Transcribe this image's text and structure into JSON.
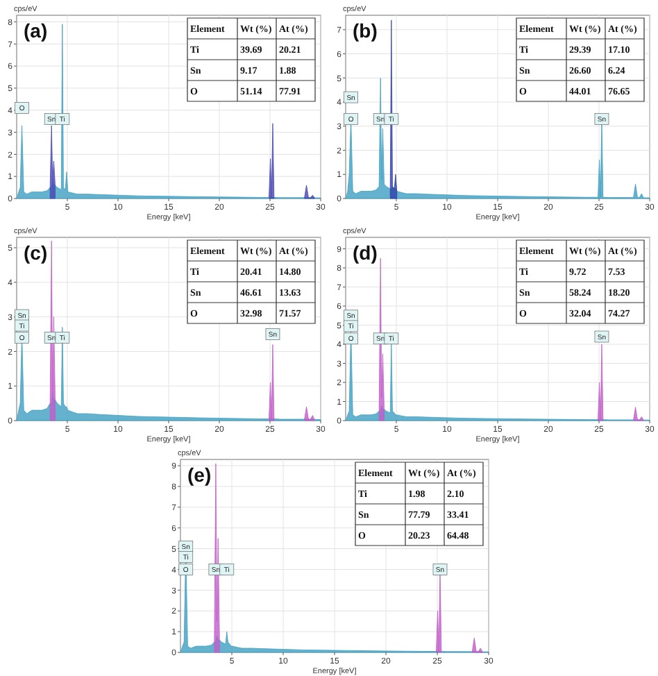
{
  "chart_data": [
    {
      "type": "area",
      "title": "(a)",
      "xlabel": "Energy [keV]",
      "ylabel": "cps/eV",
      "xlim": [
        0,
        30
      ],
      "xticks": [
        5,
        10,
        15,
        20,
        25,
        30
      ],
      "ylim": [
        0,
        8.3
      ],
      "yticks": [
        0,
        1,
        2,
        3,
        4,
        5,
        6,
        7,
        8
      ],
      "grid": true,
      "series": [
        {
          "color": "#3d9fc1",
          "x": [
            0,
            0.2,
            0.35,
            0.52,
            0.7,
            1,
            1.5,
            2,
            2.5,
            3,
            3.3,
            3.44,
            3.55,
            3.66,
            3.8,
            4,
            4.4,
            4.51,
            4.62,
            4.8,
            4.93,
            5.05,
            5.5,
            6,
            7,
            8,
            10,
            12,
            15,
            18,
            20,
            22,
            24,
            24.9,
            25.04,
            25.15,
            25.27,
            25.4,
            26,
            28,
            28.4,
            28.6,
            28.8,
            29,
            29.2,
            29.4,
            30
          ],
          "values": [
            0,
            0.3,
            0.5,
            3.3,
            0.3,
            0.2,
            0.3,
            0.3,
            0.3,
            0.35,
            0.5,
            0.5,
            0.8,
            0.6,
            0.6,
            0.5,
            0.4,
            7.9,
            0.5,
            0.4,
            1.2,
            0.3,
            0.25,
            0.2,
            0.2,
            0.18,
            0.15,
            0.12,
            0.1,
            0.08,
            0.07,
            0.06,
            0.05,
            0.05,
            0.05,
            0.05,
            0.05,
            0.05,
            0.04,
            0.04,
            0.04,
            0.04,
            0.04,
            0.04,
            0.04,
            0.03,
            0.03
          ]
        },
        {
          "color": "#4646b4",
          "x": [
            3.3,
            3.44,
            3.55,
            3.66,
            3.8,
            10,
            24.9,
            25.04,
            25.15,
            25.27,
            25.4,
            26,
            28.4,
            28.6,
            28.8,
            29,
            29.2,
            29.4
          ],
          "values": [
            0.5,
            3.3,
            0.8,
            1.7,
            0.6,
            null,
            0.05,
            1.8,
            0.05,
            3.4,
            0.05,
            null,
            0.04,
            0.6,
            0.04,
            0.04,
            0.15,
            0.03
          ]
        }
      ],
      "annotations": [
        "Element",
        "Wt (%)",
        "At (%)",
        "Ti",
        "39.69",
        "20.21",
        "Sn",
        "9.17",
        "1.88",
        "O",
        "51.14",
        "77.91",
        {
          "text": "O",
          "x": 0.52,
          "y": 4.1
        },
        {
          "text": "Sn",
          "x": 3.44,
          "y": 3.6
        },
        {
          "text": "Ti",
          "x": 4.51,
          "y": 3.6
        }
      ]
    },
    {
      "type": "area",
      "title": "(b)",
      "xlabel": "Energy [keV]",
      "ylabel": "cps/eV",
      "xlim": [
        0,
        30
      ],
      "xticks": [
        5,
        10,
        15,
        20,
        25,
        30
      ],
      "ylim": [
        0,
        7.6
      ],
      "yticks": [
        0,
        1,
        2,
        3,
        4,
        5,
        6,
        7
      ],
      "grid": true,
      "series": [
        {
          "color": "#3d9fc1",
          "x": [
            0,
            0.2,
            0.35,
            0.52,
            0.7,
            1,
            1.5,
            2,
            2.5,
            3,
            3.3,
            3.44,
            3.55,
            3.66,
            3.8,
            4,
            4.4,
            4.51,
            4.62,
            4.8,
            4.93,
            5.05,
            5.5,
            6,
            7,
            8,
            10,
            12,
            15,
            18,
            20,
            22,
            24,
            24.9,
            25.04,
            25.15,
            25.27,
            25.4,
            26,
            28,
            28.4,
            28.6,
            28.8,
            29,
            29.2,
            29.4,
            30
          ],
          "values": [
            0,
            0.3,
            1.0,
            3.3,
            0.3,
            0.2,
            0.3,
            0.3,
            0.3,
            0.35,
            0.5,
            5.0,
            0.8,
            2.9,
            0.6,
            0.5,
            0.4,
            0.4,
            0.5,
            0.4,
            0.4,
            0.3,
            0.25,
            0.2,
            0.2,
            0.18,
            0.15,
            0.12,
            0.1,
            0.08,
            0.07,
            0.06,
            0.05,
            0.05,
            1.6,
            0.05,
            3.3,
            0.05,
            0.04,
            0.04,
            0.04,
            0.6,
            0.04,
            0.04,
            0.2,
            0.03,
            0.03
          ]
        },
        {
          "color": "#2f3fa8",
          "x": [
            4.4,
            4.51,
            4.62,
            4.8,
            4.93,
            5.05
          ],
          "values": [
            0.4,
            7.4,
            0.5,
            0.4,
            1.0,
            0.3
          ]
        }
      ],
      "annotations": [
        "Element",
        "Wt (%)",
        "At (%)",
        "Ti",
        "29.39",
        "17.10",
        "Sn",
        "26.60",
        "6.24",
        "O",
        "44.01",
        "76.65",
        {
          "text": "Sn",
          "x": 0.52,
          "y": 4.2
        },
        {
          "text": "O",
          "x": 0.52,
          "y": 3.3
        },
        {
          "text": "Sn",
          "x": 3.44,
          "y": 3.3
        },
        {
          "text": "Ti",
          "x": 4.51,
          "y": 3.3
        },
        {
          "text": "Sn",
          "x": 25.27,
          "y": 3.3
        }
      ]
    },
    {
      "type": "area",
      "title": "(c)",
      "xlabel": "Energy [keV]",
      "ylabel": "cps/eV",
      "xlim": [
        0,
        30
      ],
      "xticks": [
        5,
        10,
        15,
        20,
        25,
        30
      ],
      "ylim": [
        0,
        5.3
      ],
      "yticks": [
        0,
        1,
        2,
        3,
        4,
        5
      ],
      "grid": true,
      "series": [
        {
          "color": "#3d9fc1",
          "x": [
            0,
            0.2,
            0.35,
            0.52,
            0.7,
            1,
            1.5,
            2,
            2.5,
            3,
            3.3,
            3.44,
            3.55,
            3.66,
            3.8,
            4,
            4.4,
            4.51,
            4.62,
            4.8,
            4.93,
            5.05,
            5.5,
            6,
            7,
            8,
            10,
            12,
            15,
            18,
            20,
            22,
            24,
            24.9,
            25.04,
            25.15,
            25.27,
            25.4,
            26,
            28,
            28.4,
            28.6,
            28.8,
            29,
            29.2,
            29.4,
            30
          ],
          "values": [
            0,
            0.3,
            0.5,
            2.5,
            0.3,
            0.2,
            0.3,
            0.3,
            0.3,
            0.35,
            0.5,
            0.5,
            0.8,
            0.6,
            0.6,
            0.5,
            0.4,
            2.7,
            0.5,
            0.4,
            0.4,
            0.3,
            0.25,
            0.2,
            0.2,
            0.18,
            0.15,
            0.12,
            0.1,
            0.08,
            0.07,
            0.06,
            0.05,
            0.05,
            0.05,
            0.05,
            0.05,
            0.05,
            0.04,
            0.04,
            0.04,
            0.04,
            0.04,
            0.04,
            0.04,
            0.03,
            0.03
          ]
        },
        {
          "color": "#c05cc8",
          "x": [
            3.3,
            3.44,
            3.55,
            3.66,
            3.8,
            10,
            24.9,
            25.04,
            25.15,
            25.27,
            25.4,
            26,
            28.4,
            28.6,
            28.8,
            29,
            29.2,
            29.4
          ],
          "values": [
            0.5,
            5.2,
            0.8,
            3.0,
            0.6,
            null,
            0.05,
            1.1,
            0.05,
            2.2,
            0.05,
            null,
            0.04,
            0.4,
            0.04,
            0.04,
            0.15,
            0.03
          ]
        }
      ],
      "annotations": [
        "Element",
        "Wt (%)",
        "At (%)",
        "Ti",
        "20.41",
        "14.80",
        "Sn",
        "46.61",
        "13.63",
        "O",
        "32.98",
        "71.57",
        {
          "text": "Sn",
          "x": 0.52,
          "y": 3.05
        },
        {
          "text": "Ti",
          "x": 0.52,
          "y": 2.75
        },
        {
          "text": "O",
          "x": 0.52,
          "y": 2.4
        },
        {
          "text": "Sn",
          "x": 3.44,
          "y": 2.4
        },
        {
          "text": "Ti",
          "x": 4.51,
          "y": 2.4
        },
        {
          "text": "Sn",
          "x": 25.27,
          "y": 2.5
        }
      ]
    },
    {
      "type": "area",
      "title": "(d)",
      "xlabel": "Energy [keV]",
      "ylabel": "cps/eV",
      "xlim": [
        0,
        30
      ],
      "xticks": [
        5,
        10,
        15,
        20,
        25,
        30
      ],
      "ylim": [
        0,
        9.6
      ],
      "yticks": [
        0,
        1,
        2,
        3,
        4,
        5,
        6,
        7,
        8,
        9
      ],
      "grid": true,
      "series": [
        {
          "color": "#3d9fc1",
          "x": [
            0,
            0.2,
            0.35,
            0.52,
            0.7,
            1,
            1.5,
            2,
            2.5,
            3,
            3.3,
            3.44,
            3.55,
            3.66,
            3.8,
            4,
            4.4,
            4.51,
            4.62,
            4.8,
            4.93,
            5.05,
            5.5,
            6,
            7,
            8,
            10,
            12,
            15,
            18,
            20,
            22,
            24,
            24.9,
            25.04,
            25.15,
            25.27,
            25.4,
            26,
            28,
            28.4,
            28.6,
            28.8,
            29,
            29.2,
            29.4,
            30
          ],
          "values": [
            0,
            0.3,
            0.5,
            4.8,
            0.3,
            0.2,
            0.3,
            0.3,
            0.3,
            0.35,
            0.5,
            0.5,
            0.8,
            0.6,
            0.6,
            0.5,
            0.4,
            4.0,
            0.5,
            0.4,
            0.3,
            0.3,
            0.25,
            0.2,
            0.2,
            0.18,
            0.15,
            0.12,
            0.1,
            0.08,
            0.07,
            0.06,
            0.05,
            0.05,
            0.05,
            0.05,
            0.05,
            0.05,
            0.04,
            0.04,
            0.04,
            0.04,
            0.04,
            0.04,
            0.04,
            0.03,
            0.03
          ]
        },
        {
          "color": "#c05cc8",
          "x": [
            3.3,
            3.44,
            3.55,
            3.66,
            3.8,
            10,
            24.9,
            25.04,
            25.15,
            25.27,
            25.4,
            26,
            28.4,
            28.6,
            28.8,
            29,
            29.2,
            29.4
          ],
          "values": [
            0.5,
            8.5,
            1.2,
            3.5,
            0.6,
            null,
            0.05,
            2.0,
            0.05,
            4.0,
            0.05,
            null,
            0.04,
            0.7,
            0.04,
            0.04,
            0.2,
            0.03
          ]
        }
      ],
      "annotations": [
        "Element",
        "Wt (%)",
        "At (%)",
        "Ti",
        "9.72",
        "7.53",
        "Sn",
        "58.24",
        "18.20",
        "O",
        "32.04",
        "74.27",
        {
          "text": "Sn",
          "x": 0.52,
          "y": 5.5
        },
        {
          "text": "Ti",
          "x": 0.52,
          "y": 4.95
        },
        {
          "text": "O",
          "x": 0.52,
          "y": 4.3
        },
        {
          "text": "Sn",
          "x": 3.44,
          "y": 4.3
        },
        {
          "text": "Ti",
          "x": 4.51,
          "y": 4.3
        },
        {
          "text": "Sn",
          "x": 25.27,
          "y": 4.4
        }
      ]
    },
    {
      "type": "area",
      "title": "(e)",
      "xlabel": "Energy [keV]",
      "ylabel": "cps/eV",
      "xlim": [
        0,
        30
      ],
      "xticks": [
        5,
        10,
        15,
        20,
        25,
        30
      ],
      "ylim": [
        0,
        9.3
      ],
      "yticks": [
        0,
        1,
        2,
        3,
        4,
        5,
        6,
        7,
        8,
        9
      ],
      "grid": true,
      "series": [
        {
          "color": "#3d9fc1",
          "x": [
            0,
            0.2,
            0.35,
            0.52,
            0.7,
            1,
            1.5,
            2,
            2.5,
            3,
            3.3,
            3.44,
            3.55,
            3.66,
            3.8,
            4,
            4.4,
            4.51,
            4.62,
            4.8,
            4.93,
            5.05,
            5.5,
            6,
            7,
            8,
            10,
            12,
            15,
            18,
            20,
            22,
            24,
            24.9,
            25.04,
            25.15,
            25.27,
            25.4,
            26,
            28,
            28.4,
            28.6,
            28.8,
            29,
            29.2,
            29.4,
            30
          ],
          "values": [
            0,
            0.3,
            0.5,
            5.0,
            0.3,
            0.2,
            0.3,
            0.3,
            0.3,
            0.35,
            0.5,
            0.5,
            0.8,
            0.6,
            0.6,
            0.5,
            0.4,
            1.0,
            0.5,
            0.4,
            0.3,
            0.3,
            0.25,
            0.2,
            0.2,
            0.18,
            0.15,
            0.12,
            0.1,
            0.08,
            0.07,
            0.06,
            0.05,
            0.05,
            0.05,
            0.05,
            0.05,
            0.05,
            0.04,
            0.04,
            0.04,
            0.04,
            0.04,
            0.04,
            0.04,
            0.03,
            0.03
          ]
        },
        {
          "color": "#c05cc8",
          "x": [
            3.3,
            3.44,
            3.55,
            3.66,
            3.8,
            10,
            24.9,
            25.04,
            25.15,
            25.27,
            25.4,
            26,
            28.4,
            28.6,
            28.8,
            29,
            29.2,
            29.4
          ],
          "values": [
            0.5,
            9.1,
            1.5,
            5.5,
            0.6,
            null,
            0.05,
            2.0,
            0.05,
            4.0,
            0.05,
            null,
            0.04,
            0.7,
            0.04,
            0.04,
            0.2,
            0.03
          ]
        }
      ],
      "annotations": [
        "Element",
        "Wt (%)",
        "At (%)",
        "Ti",
        "1.98",
        "2.10",
        "Sn",
        "77.79",
        "33.41",
        "O",
        "20.23",
        "64.48",
        {
          "text": "Sn",
          "x": 0.52,
          "y": 5.1
        },
        {
          "text": "Ti",
          "x": 0.52,
          "y": 4.6
        },
        {
          "text": "O",
          "x": 0.52,
          "y": 4.0
        },
        {
          "text": "Sn",
          "x": 3.44,
          "y": 4.0
        },
        {
          "text": "Ti",
          "x": 4.51,
          "y": 4.0
        },
        {
          "text": "Sn",
          "x": 25.27,
          "y": 4.0
        }
      ]
    }
  ]
}
